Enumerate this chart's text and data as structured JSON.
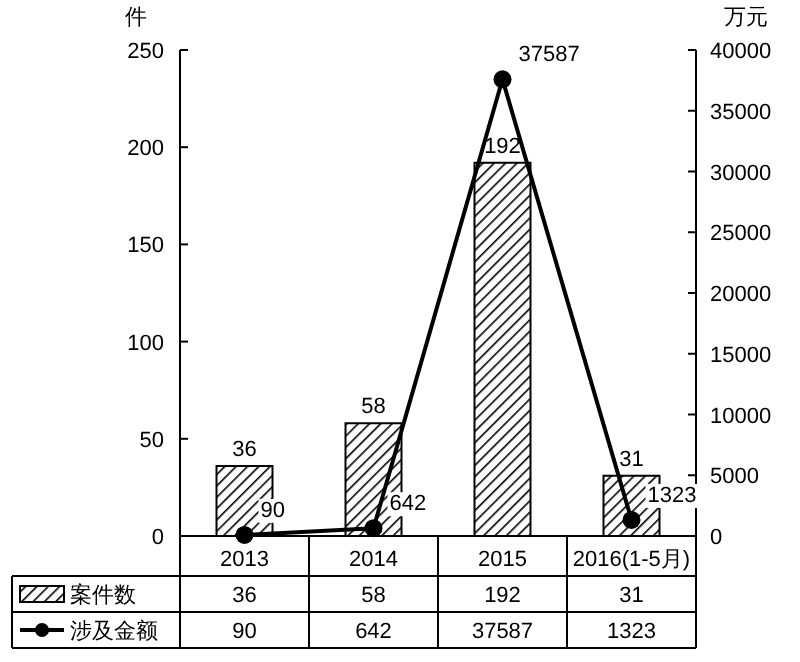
{
  "chart_data": {
    "type": "bar",
    "categories": [
      "2013",
      "2014",
      "2015",
      "2016(1-5月)"
    ],
    "series": [
      {
        "name": "案件数",
        "color": "#000000",
        "values": [
          36,
          58,
          192,
          31
        ]
      },
      {
        "name": "涉及金额",
        "type": "line",
        "axis": "y2",
        "color": "#000000",
        "marker": "circle",
        "values": [
          90,
          642,
          37587,
          1323
        ],
        "value_labels": [
          "90",
          "642",
          "37587",
          "1323"
        ]
      }
    ],
    "annotations": [
      {
        "text": "36",
        "x": "2013",
        "y": 36
      },
      {
        "text": "58",
        "x": "2014",
        "y": 58
      },
      {
        "text": "192",
        "x": "2015",
        "y": 192
      },
      {
        "text": "31",
        "x": "2016(1-5月)",
        "y": 31
      }
    ],
    "ylabel": "件",
    "y2label": "万元",
    "ylim": [
      0,
      250
    ],
    "yticks": [
      0,
      50,
      100,
      150,
      200,
      250
    ],
    "y2lim": [
      0,
      40000
    ],
    "y2ticks": [
      0,
      5000,
      10000,
      15000,
      20000,
      25000,
      30000,
      35000,
      40000
    ],
    "data_labels": true,
    "legend": "bottom",
    "grid": false
  }
}
